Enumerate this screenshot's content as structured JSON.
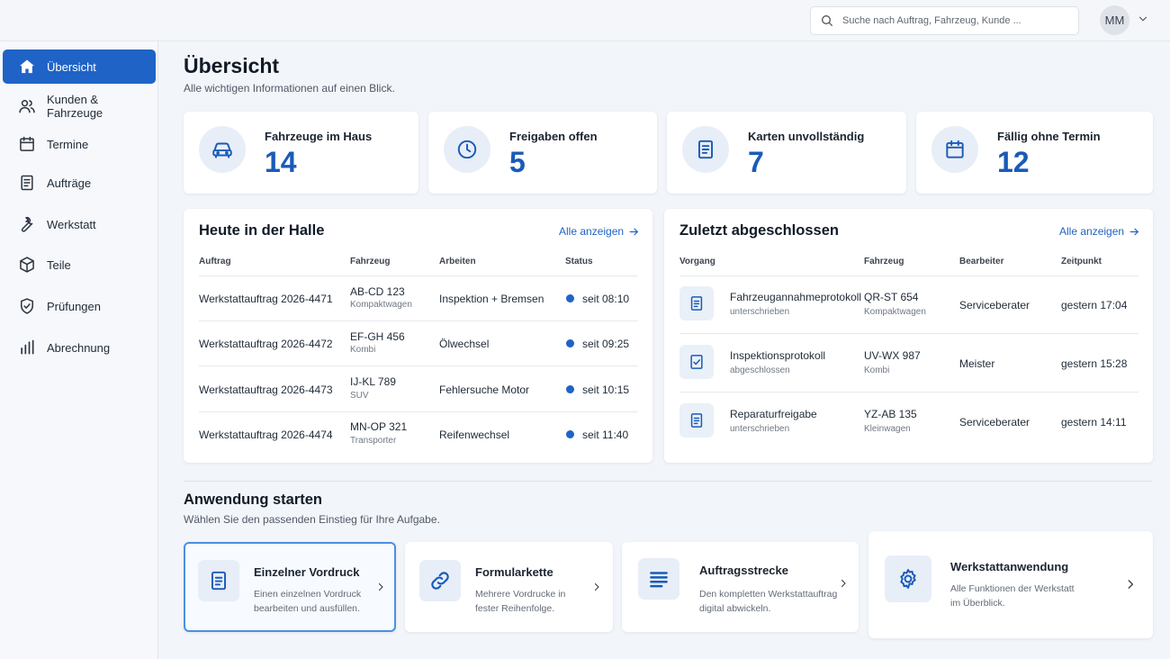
{
  "search": {
    "placeholder": "Suche nach Auftrag, Fahrzeug, Kunde ..."
  },
  "user": {
    "initials": "MM"
  },
  "sidebar": {
    "items": [
      {
        "label": "Übersicht",
        "icon": "home-icon",
        "active": true
      },
      {
        "label": "Kunden & Fahrzeuge",
        "icon": "users-icon"
      },
      {
        "label": "Termine",
        "icon": "calendar-icon"
      },
      {
        "label": "Aufträge",
        "icon": "document-icon"
      },
      {
        "label": "Werkstatt",
        "icon": "wrench-icon"
      },
      {
        "label": "Teile",
        "icon": "box-icon"
      },
      {
        "label": "Prüfungen",
        "icon": "shield-check-icon"
      },
      {
        "label": "Abrechnung",
        "icon": "bar-chart-icon"
      }
    ]
  },
  "page": {
    "title": "Übersicht",
    "subtitle": "Alle wichtigen Informationen auf einen Blick."
  },
  "stats": [
    {
      "label": "Fahrzeuge im Haus",
      "value": "14",
      "icon": "car-icon"
    },
    {
      "label": "Freigaben offen",
      "value": "5",
      "icon": "clock-icon"
    },
    {
      "label": "Karten unvollständig",
      "value": "7",
      "icon": "document-icon"
    },
    {
      "label": "Fällig ohne Termin",
      "value": "12",
      "icon": "calendar-icon"
    }
  ],
  "hall": {
    "title": "Heute in der Halle",
    "link": "Alle anzeigen",
    "headers": [
      "Auftrag",
      "Fahrzeug",
      "Arbeiten",
      "Status"
    ],
    "rows": [
      {
        "order": "Werkstattauftrag 2026-4471",
        "plate": "AB-CD 123",
        "type": "Kompaktwagen",
        "work": "Inspektion + Bremsen",
        "status": "seit 08:10"
      },
      {
        "order": "Werkstattauftrag 2026-4472",
        "plate": "EF-GH 456",
        "type": "Kombi",
        "work": "Ölwechsel",
        "status": "seit 09:25"
      },
      {
        "order": "Werkstattauftrag 2026-4473",
        "plate": "IJ-KL 789",
        "type": "SUV",
        "work": "Fehlersuche Motor",
        "status": "seit 10:15"
      },
      {
        "order": "Werkstattauftrag 2026-4474",
        "plate": "MN-OP 321",
        "type": "Transporter",
        "work": "Reifenwechsel",
        "status": "seit 11:40"
      }
    ]
  },
  "recent": {
    "title": "Zuletzt abgeschlossen",
    "link": "Alle anzeigen",
    "headers": [
      "Vorgang",
      "Fahrzeug",
      "Bearbeiter",
      "Zeitpunkt"
    ],
    "rows": [
      {
        "name": "Fahrzeugannahmeprotokoll",
        "state": "unterschrieben",
        "plate": "QR-ST 654",
        "type": "Kompaktwagen",
        "editor": "Serviceberater",
        "time": "gestern 17:04",
        "icon": "document-icon"
      },
      {
        "name": "Inspektionsprotokoll",
        "state": "abgeschlossen",
        "plate": "UV-WX 987",
        "type": "Kombi",
        "editor": "Meister",
        "time": "gestern 15:28",
        "icon": "checklist-icon"
      },
      {
        "name": "Reparaturfreigabe",
        "state": "unterschrieben",
        "plate": "YZ-AB 135",
        "type": "Kleinwagen",
        "editor": "Serviceberater",
        "time": "gestern 14:11",
        "icon": "document-icon"
      }
    ]
  },
  "apps": {
    "title": "Anwendung starten",
    "subtitle": "Wählen Sie den passenden Einstieg für Ihre Aufgabe.",
    "items": [
      {
        "name": "Einzelner Vordruck",
        "desc": "Einen einzelnen Vordruck bearbeiten und ausfüllen.",
        "icon": "document-icon",
        "selected": true
      },
      {
        "name": "Formularkette",
        "desc": "Mehrere Vordrucke in fester Reihenfolge.",
        "icon": "link-icon"
      },
      {
        "name": "Auftragsstrecke",
        "desc": "Den kompletten Werkstattauftrag digital abwickeln.",
        "icon": "list-icon"
      },
      {
        "name": "Werkstattanwendung",
        "desc": "Alle Funktionen der Werkstatt im Überblick.",
        "icon": "gear-icon"
      }
    ]
  },
  "colors": {
    "accent": "#1f63c6",
    "value": "#1a5bb8",
    "background": "#f2f5f9"
  }
}
